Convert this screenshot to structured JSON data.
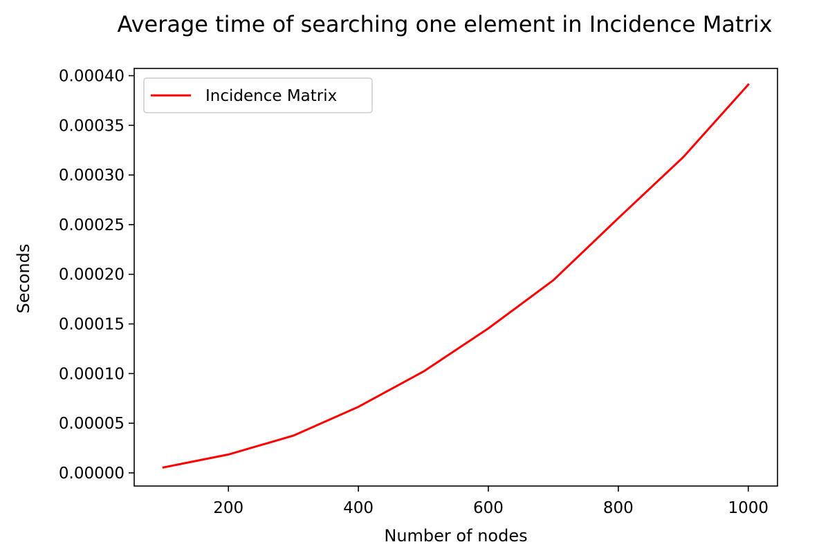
{
  "chart_data": {
    "type": "line",
    "title": "Average time of searching one element in Incidence Matrix",
    "xlabel": "Number of nodes",
    "ylabel": "Seconds",
    "xlim": [
      55,
      1045
    ],
    "ylim": [
      -1.325e-05,
      0.0004073
    ],
    "xticks": [
      200,
      400,
      600,
      800,
      1000
    ],
    "xtick_labels": [
      "200",
      "400",
      "600",
      "800",
      "1000"
    ],
    "yticks": [
      0,
      5e-05,
      0.0001,
      0.00015,
      0.0002,
      0.00025,
      0.0003,
      0.00035,
      0.0004
    ],
    "ytick_labels": [
      "0.00000",
      "0.00005",
      "0.00010",
      "0.00015",
      "0.00020",
      "0.00025",
      "0.00030",
      "0.00035",
      "0.00040"
    ],
    "grid": false,
    "legend_position": "top-left",
    "series": [
      {
        "name": "Incidence Matrix",
        "color": "#ff0000",
        "x": [
          100,
          200,
          300,
          400,
          500,
          600,
          700,
          800,
          900,
          1000
        ],
        "y": [
          5.5e-06,
          1.85e-05,
          3.75e-05,
          6.65e-05,
          0.000102,
          0.0001455,
          0.000194,
          0.0002565,
          0.000318,
          0.000391
        ]
      }
    ]
  }
}
